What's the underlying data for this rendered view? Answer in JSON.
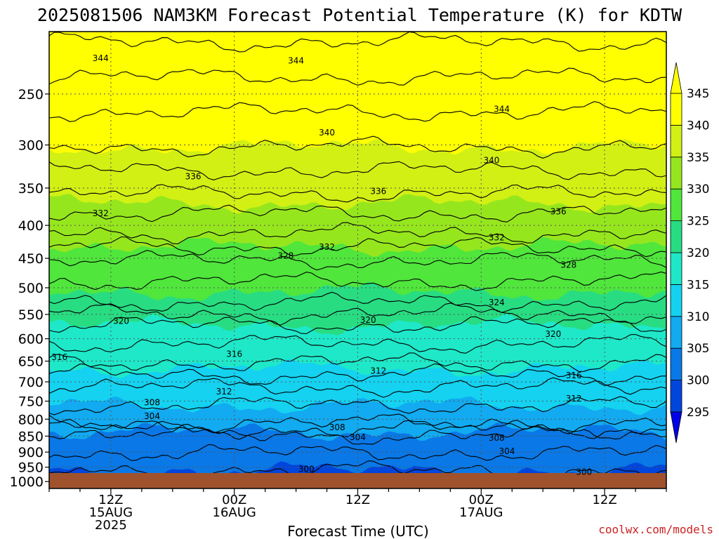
{
  "chart_data": {
    "type": "heatmap",
    "title": "2025081506 NAM3KM Forecast Potential Temperature (K) for KDTW",
    "xlabel": "Forecast Time (UTC)",
    "ylabel": "",
    "x_ticks": [
      {
        "hour": 6,
        "line1": "12Z",
        "line2": "15AUG",
        "line3": "2025"
      },
      {
        "hour": 18,
        "line1": "00Z",
        "line2": "16AUG",
        "line3": ""
      },
      {
        "hour": 30,
        "line1": "12Z",
        "line2": "",
        "line3": ""
      },
      {
        "hour": 42,
        "line1": "00Z",
        "line2": "17AUG",
        "line3": ""
      },
      {
        "hour": 54,
        "line1": "12Z",
        "line2": "",
        "line3": ""
      }
    ],
    "xlim_hours": [
      0,
      60
    ],
    "y_ticks_hpa": [
      250,
      300,
      350,
      400,
      450,
      500,
      550,
      600,
      650,
      700,
      750,
      800,
      850,
      900,
      950,
      1000
    ],
    "ylim_hpa": [
      1025,
      200
    ],
    "y_scale": "log-pressure",
    "contour_interval_K": 2,
    "colorbar_levels": [
      295,
      300,
      305,
      310,
      315,
      320,
      325,
      330,
      335,
      340,
      345
    ],
    "colorbar_colors": [
      "#0000e6",
      "#0046dc",
      "#0a78e6",
      "#12aaf0",
      "#14d2f0",
      "#1ee8c8",
      "#28dc82",
      "#50e63c",
      "#96e61e",
      "#d2f014",
      "#ffff00"
    ],
    "colorbar_extend": "both",
    "ground_color": "#a0522d",
    "contour_labels": [
      {
        "text": "344",
        "hour": 5.0,
        "p": 220
      },
      {
        "text": "344",
        "hour": 24.0,
        "p": 222
      },
      {
        "text": "344",
        "hour": 44.0,
        "p": 264
      },
      {
        "text": "340",
        "hour": 27.0,
        "p": 287
      },
      {
        "text": "340",
        "hour": 43.0,
        "p": 317
      },
      {
        "text": "336",
        "hour": 14.0,
        "p": 336
      },
      {
        "text": "336",
        "hour": 32.0,
        "p": 354
      },
      {
        "text": "336",
        "hour": 49.5,
        "p": 381
      },
      {
        "text": "332",
        "hour": 5.0,
        "p": 383
      },
      {
        "text": "332",
        "hour": 27.0,
        "p": 432
      },
      {
        "text": "332",
        "hour": 43.5,
        "p": 418
      },
      {
        "text": "328",
        "hour": 23.0,
        "p": 446
      },
      {
        "text": "328",
        "hour": 50.5,
        "p": 461
      },
      {
        "text": "324",
        "hour": 43.5,
        "p": 527
      },
      {
        "text": "320",
        "hour": 7.0,
        "p": 563
      },
      {
        "text": "320",
        "hour": 31.0,
        "p": 561
      },
      {
        "text": "320",
        "hour": 49.0,
        "p": 590
      },
      {
        "text": "316",
        "hour": 1.0,
        "p": 641
      },
      {
        "text": "316",
        "hour": 18.0,
        "p": 634
      },
      {
        "text": "316",
        "hour": 51.0,
        "p": 684
      },
      {
        "text": "312",
        "hour": 32.0,
        "p": 673
      },
      {
        "text": "312",
        "hour": 17.0,
        "p": 725
      },
      {
        "text": "312",
        "hour": 51.0,
        "p": 743
      },
      {
        "text": "308",
        "hour": 10.0,
        "p": 754
      },
      {
        "text": "308",
        "hour": 28.0,
        "p": 824
      },
      {
        "text": "308",
        "hour": 43.5,
        "p": 856
      },
      {
        "text": "304",
        "hour": 10.0,
        "p": 791
      },
      {
        "text": "304",
        "hour": 30.0,
        "p": 853
      },
      {
        "text": "304",
        "hour": 44.5,
        "p": 897
      },
      {
        "text": "300",
        "hour": 25.0,
        "p": 957
      },
      {
        "text": "300",
        "hour": 52.0,
        "p": 966
      }
    ],
    "credit": "coolwx.com/models"
  }
}
